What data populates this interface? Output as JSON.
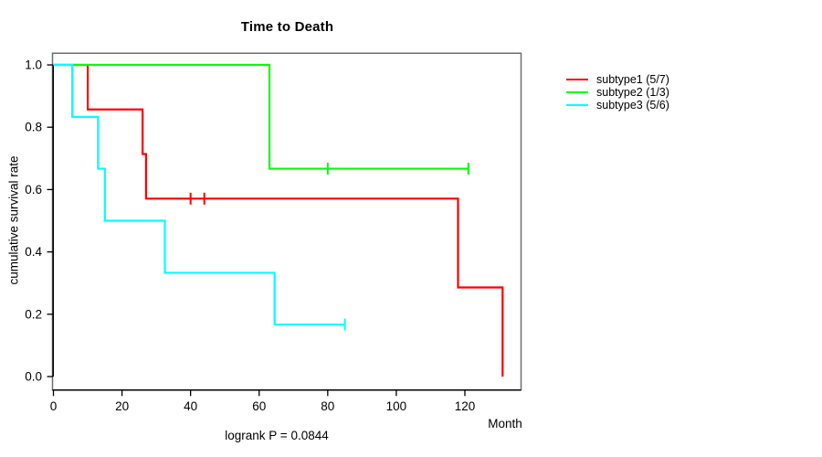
{
  "window": {
    "background": "#ffffff"
  },
  "chart_data": {
    "type": "line",
    "subtype": "kaplan-meier-step-curves",
    "title": "Time to Death",
    "xlabel": "Month",
    "ylabel": "cumulative survival rate",
    "footnote": "logrank P = 0.0844",
    "xlim": [
      0,
      135
    ],
    "ylim": [
      0.0,
      1.0
    ],
    "xticks": [
      "0",
      "20",
      "40",
      "60",
      "80",
      "100",
      "120"
    ],
    "yticks": [
      "0.0",
      "0.2",
      "0.4",
      "0.6",
      "0.8",
      "1.0"
    ],
    "grid": false,
    "legend_position": "right-outside",
    "axis_color": "#000000",
    "box_color": "#6e6e6e",
    "series": [
      {
        "name": "subtype1 (5/7)",
        "color": "#ff0000",
        "steps": [
          [
            0,
            1.0
          ],
          [
            10,
            0.857
          ],
          [
            26,
            0.714
          ],
          [
            27,
            0.571
          ],
          [
            118,
            0.286
          ],
          [
            131,
            0.0
          ]
        ],
        "censor_marks": [
          [
            40,
            0.571
          ],
          [
            44,
            0.571
          ]
        ],
        "follow_up_end": 131
      },
      {
        "name": "subtype2 (1/3)",
        "color": "#00ff00",
        "steps": [
          [
            0,
            1.0
          ],
          [
            63,
            0.667
          ]
        ],
        "censor_marks": [
          [
            80,
            0.667
          ],
          [
            121,
            0.667
          ]
        ],
        "follow_up_end": 121
      },
      {
        "name": "subtype3 (5/6)",
        "color": "#00ffff",
        "steps": [
          [
            0,
            1.0
          ],
          [
            5.5,
            0.833
          ],
          [
            13,
            0.667
          ],
          [
            15,
            0.5
          ],
          [
            32.5,
            0.333
          ],
          [
            64.5,
            0.167
          ]
        ],
        "censor_marks": [
          [
            85,
            0.167
          ]
        ],
        "follow_up_end": 85
      }
    ]
  }
}
